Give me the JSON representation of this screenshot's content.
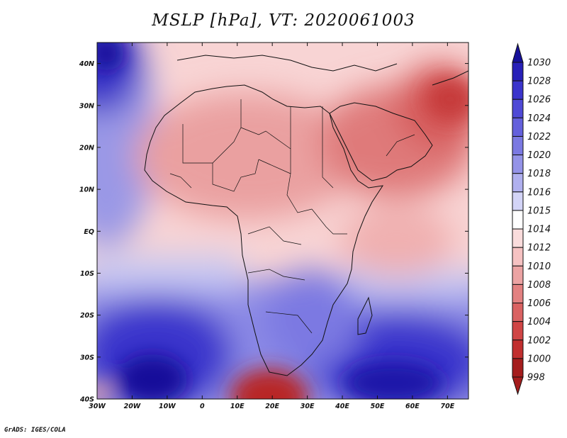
{
  "title": "MSLP [hPa], VT: 2020061003",
  "credit": "GrADS: IGES/COLA",
  "map": {
    "lon_range": [
      -30,
      76
    ],
    "lat_range": [
      -40,
      45
    ],
    "lat_ticks": [
      {
        "value": 40,
        "label": "40N"
      },
      {
        "value": 30,
        "label": "30N"
      },
      {
        "value": 20,
        "label": "20N"
      },
      {
        "value": 10,
        "label": "10N"
      },
      {
        "value": 0,
        "label": "EQ"
      },
      {
        "value": -10,
        "label": "10S"
      },
      {
        "value": -20,
        "label": "20S"
      },
      {
        "value": -30,
        "label": "30S"
      },
      {
        "value": -40,
        "label": "40S"
      }
    ],
    "lon_ticks": [
      {
        "value": -30,
        "label": "30W"
      },
      {
        "value": -20,
        "label": "20W"
      },
      {
        "value": -10,
        "label": "10W"
      },
      {
        "value": 0,
        "label": "0"
      },
      {
        "value": 10,
        "label": "10E"
      },
      {
        "value": 20,
        "label": "20E"
      },
      {
        "value": 30,
        "label": "30E"
      },
      {
        "value": 40,
        "label": "40E"
      },
      {
        "value": 50,
        "label": "50E"
      },
      {
        "value": 60,
        "label": "60E"
      },
      {
        "value": 70,
        "label": "70E"
      }
    ]
  },
  "colorbar": {
    "levels": [
      "1030",
      "1028",
      "1026",
      "1024",
      "1022",
      "1020",
      "1018",
      "1016",
      "1015",
      "1014",
      "1012",
      "1010",
      "1008",
      "1006",
      "1004",
      "1002",
      "1000",
      "998"
    ],
    "colors": [
      "#16109a",
      "#2820b8",
      "#3b34cc",
      "#4f49d6",
      "#6460dc",
      "#7b79e2",
      "#9493e8",
      "#b0b0ef",
      "#d3d4f7",
      "#ffffff",
      "#fadcdc",
      "#f6c2c2",
      "#eca3a3",
      "#e38181",
      "#da6262",
      "#d04545",
      "#c12f2f",
      "#a51d1d"
    ]
  }
}
